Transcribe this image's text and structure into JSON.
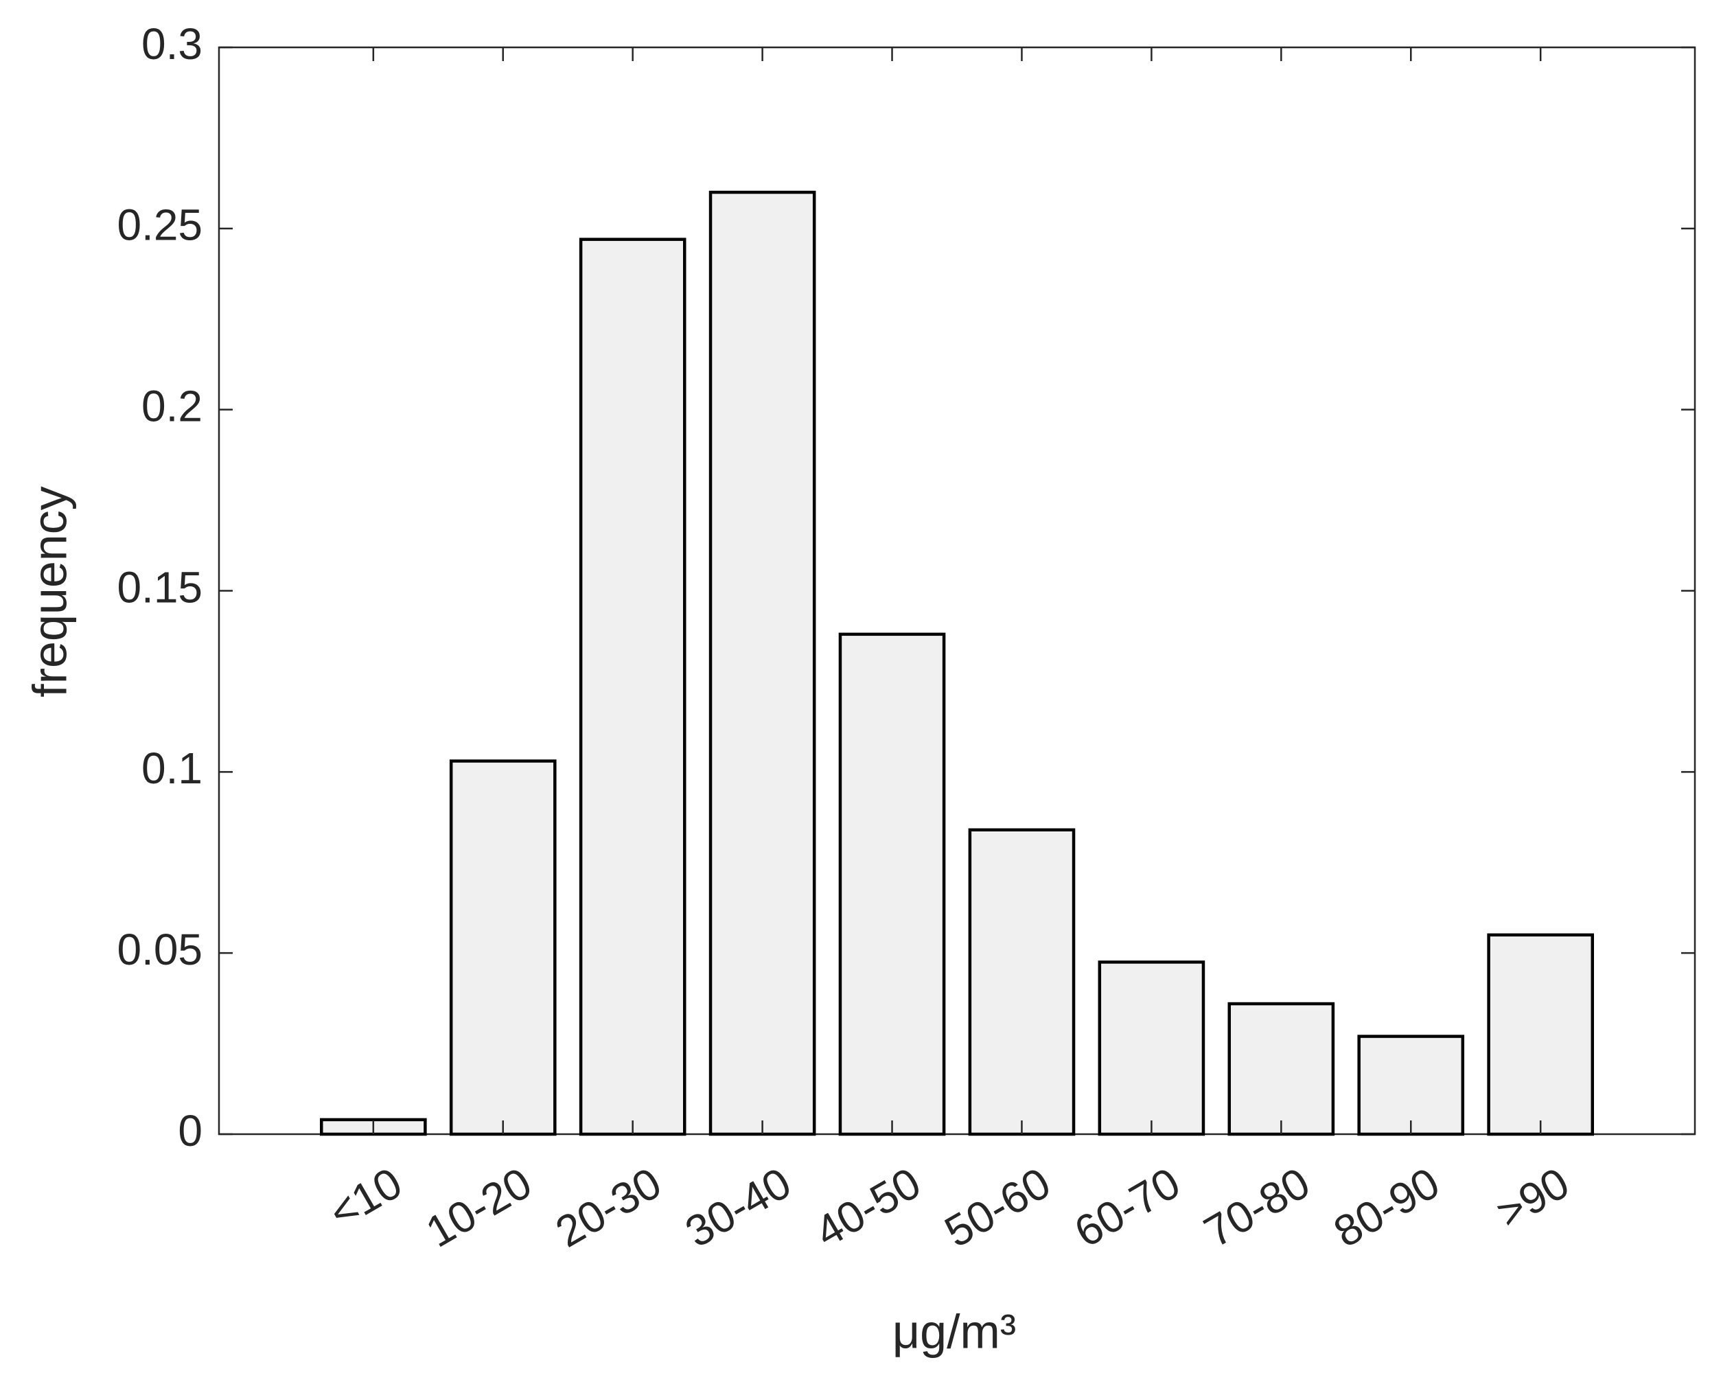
{
  "chart_data": {
    "type": "bar",
    "x_label": "μg/m³",
    "y_label": "frequency",
    "categories": [
      "<10",
      "10-20",
      "20-30",
      "30-40",
      "40-50",
      "50-60",
      "60-70",
      "70-80",
      "80-90",
      ">90"
    ],
    "values": [
      0.004,
      0.103,
      0.247,
      0.26,
      0.138,
      0.084,
      0.0475,
      0.036,
      0.027,
      0.055
    ],
    "color": "#f0f0f0",
    "ylim": [
      0,
      0.3
    ],
    "yticks": [
      0,
      0.05,
      0.1,
      0.15,
      0.2,
      0.25,
      0.3
    ],
    "grid": false
  }
}
